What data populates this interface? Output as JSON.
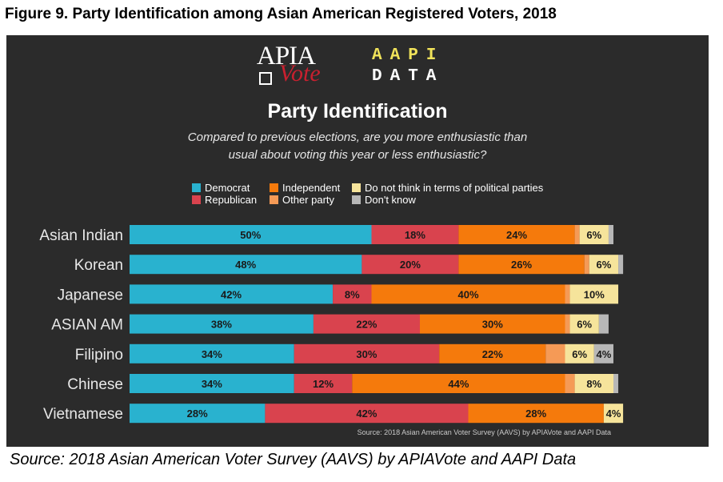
{
  "figure_title": "Figure 9.  Party Identification among Asian American Registered Voters, 2018",
  "logos": {
    "apia_top": "APIA",
    "apia_bottom": "Vote",
    "aapi_top": "AAPI",
    "aapi_bottom": "DATA"
  },
  "source_inner": "Source: 2018 Asian American Voter Survey (AAVS) by APIAVote and AAPI Data",
  "source_outer": "Source: 2018 Asian American Voter Survey (AAVS) by APIAVote and AAPI Data",
  "colors": {
    "democrat": "#29b2cf",
    "republican": "#d9434e",
    "independent": "#f57a0c",
    "other_party": "#f59a56",
    "no_parties": "#f6e49b",
    "dont_know": "#b7b7b7"
  },
  "chart_data": {
    "type": "bar",
    "orientation": "horizontal",
    "stacked": true,
    "title": "Party Identification",
    "subtitle_lines": [
      "Compared to previous elections, are you more enthusiastic than",
      "usual about voting this year or less enthusiastic?"
    ],
    "categories": [
      "Asian Indian",
      "Korean",
      "Japanese",
      "ASIAN AM",
      "Filipino",
      "Chinese",
      "Vietnamese"
    ],
    "series": [
      {
        "name": "Democrat",
        "key": "democrat",
        "values": [
          50,
          48,
          42,
          38,
          34,
          34,
          28
        ],
        "labels": [
          "50%",
          "48%",
          "42%",
          "38%",
          "34%",
          "34%",
          "28%"
        ]
      },
      {
        "name": "Republican",
        "key": "republican",
        "values": [
          18,
          20,
          8,
          22,
          30,
          12,
          42
        ],
        "labels": [
          "18%",
          "20%",
          "8%",
          "22%",
          "30%",
          "12%",
          "42%"
        ]
      },
      {
        "name": "Independent",
        "key": "independent",
        "values": [
          24,
          26,
          40,
          30,
          22,
          44,
          28
        ],
        "labels": [
          "24%",
          "26%",
          "40%",
          "30%",
          "22%",
          "44%",
          "28%"
        ]
      },
      {
        "name": "Other party",
        "key": "other_party",
        "values": [
          1,
          1,
          1,
          1,
          4,
          2,
          0
        ],
        "labels": [
          "",
          "",
          "",
          "",
          "",
          "",
          ""
        ]
      },
      {
        "name": "Do not think in terms of political parties",
        "key": "no_parties",
        "values": [
          6,
          6,
          10,
          6,
          6,
          8,
          4
        ],
        "labels": [
          "6%",
          "6%",
          "10%",
          "6%",
          "6%",
          "8%",
          "4%"
        ]
      },
      {
        "name": "Don't know",
        "key": "dont_know",
        "values": [
          1,
          1,
          0,
          2,
          4,
          1,
          0
        ],
        "labels": [
          "",
          "",
          "",
          "",
          "4%",
          "",
          ""
        ]
      }
    ],
    "legend": [
      {
        "label": "Democrat",
        "key": "democrat"
      },
      {
        "label": "Republican",
        "key": "republican"
      },
      {
        "label": "Independent",
        "key": "independent"
      },
      {
        "label": "Other party",
        "key": "other_party"
      },
      {
        "label": "Do not think in terms of political parties",
        "key": "no_parties"
      },
      {
        "label": "Don't know",
        "key": "dont_know"
      }
    ],
    "xlim": [
      0,
      100
    ],
    "grid": false
  }
}
